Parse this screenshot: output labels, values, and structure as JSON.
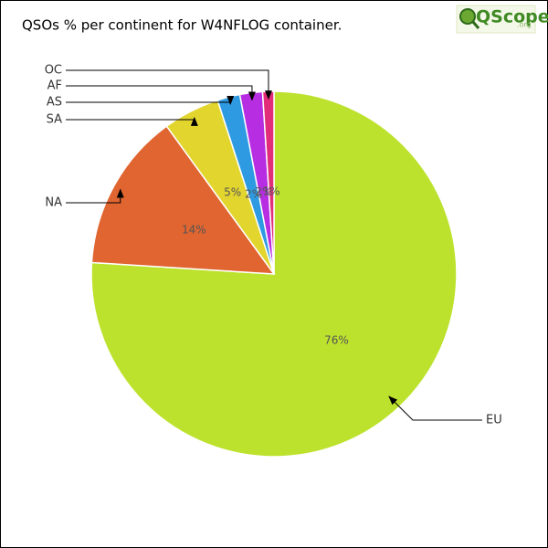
{
  "chart_data": {
    "type": "pie",
    "title": "QSOs % per continent for W4NFLOG container.",
    "logo": "QScope",
    "logo_suffix": ".org",
    "categories": [
      "EU",
      "NA",
      "SA",
      "AS",
      "AF",
      "OC"
    ],
    "values": [
      76,
      14,
      5,
      2,
      2,
      1
    ],
    "value_labels": [
      "76%",
      "14%",
      "5%",
      "2%",
      "2%",
      "1%"
    ],
    "colors": [
      "#bde22e",
      "#e06530",
      "#e2d52e",
      "#2e9ae2",
      "#b72ee2",
      "#e22e7a"
    ]
  }
}
